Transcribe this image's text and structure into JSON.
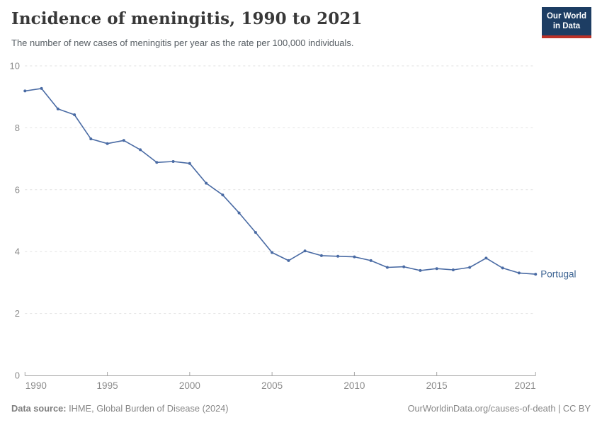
{
  "header": {
    "title": "Incidence of meningitis, 1990 to 2021",
    "subtitle": "The number of new cases of meningitis per year as the rate per 100,000 individuals.",
    "logo": {
      "line1": "Our World",
      "line2": "in Data",
      "bg_color": "#1d3d63",
      "bar_color": "#bc3228"
    }
  },
  "chart_data": {
    "type": "line",
    "title": "Incidence of meningitis, 1990 to 2021",
    "xlabel": "",
    "ylabel": "",
    "xlim": [
      1990,
      2021
    ],
    "ylim": [
      0,
      10
    ],
    "x_ticks": [
      1990,
      1995,
      2000,
      2005,
      2010,
      2015,
      2021
    ],
    "y_ticks": [
      0,
      2,
      4,
      6,
      8,
      10
    ],
    "grid": "horizontal-dashed",
    "legend": "line-end-label",
    "series": [
      {
        "name": "Portugal",
        "color": "#4a6ba4",
        "label_color": "#3d6493",
        "x": [
          1990,
          1991,
          1992,
          1993,
          1994,
          1995,
          1996,
          1997,
          1998,
          1999,
          2000,
          2001,
          2002,
          2003,
          2004,
          2005,
          2006,
          2007,
          2008,
          2009,
          2010,
          2011,
          2012,
          2013,
          2014,
          2015,
          2016,
          2017,
          2018,
          2019,
          2020,
          2021
        ],
        "values": [
          9.19,
          9.27,
          8.61,
          8.42,
          7.64,
          7.49,
          7.59,
          7.29,
          6.88,
          6.91,
          6.85,
          6.21,
          5.83,
          5.25,
          4.62,
          3.97,
          3.71,
          4.02,
          3.87,
          3.85,
          3.83,
          3.71,
          3.49,
          3.51,
          3.39,
          3.45,
          3.41,
          3.49,
          3.79,
          3.47,
          3.31,
          3.27
        ]
      }
    ],
    "style": {
      "grid_color": "#e2e2e2",
      "axis_color": "#a6a6a6",
      "tick_label_color": "#8b8b8b"
    }
  },
  "footer": {
    "source_label": "Data source:",
    "source_text": " IHME, Global Burden of Disease (2024)",
    "credit": "OurWorldinData.org/causes-of-death | CC BY"
  }
}
